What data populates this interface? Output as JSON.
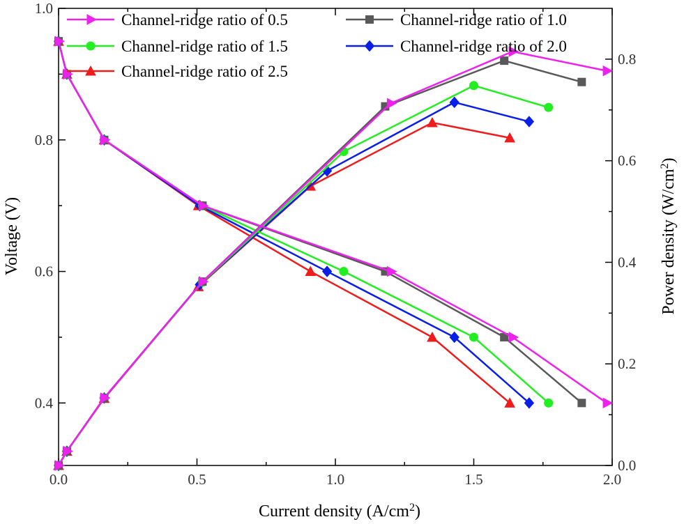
{
  "chart_data": {
    "type": "line",
    "title": "",
    "xlabel": "Current density (A/cm",
    "xlabel_sup": "2",
    "xlabel_end": ")",
    "ylabel_left": "Voltage (V)",
    "ylabel_right": "Power density (W/cm",
    "ylabel_right_sup": "2",
    "ylabel_right_end": ")",
    "xlim": [
      0.0,
      2.0
    ],
    "ylim_left": [
      0.305,
      1.0
    ],
    "ylim_right": [
      0.0,
      0.9
    ],
    "x_ticks": [
      0.0,
      0.5,
      1.0,
      1.5,
      2.0
    ],
    "x_tick_labels": [
      "0.0",
      "0.5",
      "1.0",
      "1.5",
      "2.0"
    ],
    "y_left_ticks": [
      0.4,
      0.6,
      0.8,
      1.0
    ],
    "y_left_tick_labels": [
      "0.4",
      "0.6",
      "0.8",
      "1.0"
    ],
    "y_right_ticks": [
      0.0,
      0.2,
      0.4,
      0.6,
      0.8
    ],
    "y_right_tick_labels": [
      "0.0",
      "0.2",
      "0.4",
      "0.6",
      "0.8"
    ],
    "legend_position": "top",
    "series": [
      {
        "name": "Channel-ridge ratio of 2.5",
        "color": "#ee1c1c",
        "marker": "triangle",
        "polarization": [
          [
            0.0,
            0.95
          ],
          [
            0.03,
            0.9
          ],
          [
            0.165,
            0.8
          ],
          [
            0.505,
            0.7
          ],
          [
            0.91,
            0.6
          ],
          [
            1.35,
            0.5
          ],
          [
            1.63,
            0.4
          ]
        ],
        "power": [
          [
            0.0,
            0.0
          ],
          [
            0.03,
            0.028
          ],
          [
            0.165,
            0.132
          ],
          [
            0.505,
            0.352
          ],
          [
            0.91,
            0.55
          ],
          [
            1.35,
            0.675
          ],
          [
            1.63,
            0.645
          ]
        ]
      },
      {
        "name": "Channel-ridge ratio of 2.0",
        "color": "#0a1fe6",
        "marker": "diamond",
        "polarization": [
          [
            0.0,
            0.95
          ],
          [
            0.03,
            0.9
          ],
          [
            0.165,
            0.8
          ],
          [
            0.51,
            0.7
          ],
          [
            0.97,
            0.6
          ],
          [
            1.43,
            0.5
          ],
          [
            1.7,
            0.4
          ]
        ],
        "power": [
          [
            0.0,
            0.0
          ],
          [
            0.03,
            0.028
          ],
          [
            0.165,
            0.133
          ],
          [
            0.51,
            0.356
          ],
          [
            0.97,
            0.58
          ],
          [
            1.43,
            0.715
          ],
          [
            1.7,
            0.677
          ]
        ]
      },
      {
        "name": "Channel-ridge ratio of 1.5",
        "color": "#22ee22",
        "marker": "circle",
        "polarization": [
          [
            0.0,
            0.95
          ],
          [
            0.03,
            0.9
          ],
          [
            0.165,
            0.8
          ],
          [
            0.52,
            0.7
          ],
          [
            1.03,
            0.6
          ],
          [
            1.5,
            0.5
          ],
          [
            1.77,
            0.4
          ]
        ],
        "power": [
          [
            0.0,
            0.0
          ],
          [
            0.03,
            0.028
          ],
          [
            0.165,
            0.133
          ],
          [
            0.52,
            0.361
          ],
          [
            1.03,
            0.618
          ],
          [
            1.5,
            0.748
          ],
          [
            1.77,
            0.705
          ]
        ]
      },
      {
        "name": "Channel-ridge ratio of 1.0",
        "color": "#595959",
        "marker": "square",
        "polarization": [
          [
            0.0,
            0.95
          ],
          [
            0.03,
            0.9
          ],
          [
            0.165,
            0.8
          ],
          [
            0.52,
            0.7
          ],
          [
            1.18,
            0.6
          ],
          [
            1.61,
            0.5
          ],
          [
            1.89,
            0.4
          ]
        ],
        "power": [
          [
            0.0,
            0.0
          ],
          [
            0.03,
            0.028
          ],
          [
            0.165,
            0.133
          ],
          [
            0.52,
            0.362
          ],
          [
            1.18,
            0.707
          ],
          [
            1.61,
            0.797
          ],
          [
            1.89,
            0.755
          ]
        ]
      },
      {
        "name": "Channel-ridge ratio of 0.5",
        "color": "#ee22ee",
        "marker": "triangle-right",
        "polarization": [
          [
            0.0,
            0.95
          ],
          [
            0.03,
            0.9
          ],
          [
            0.165,
            0.8
          ],
          [
            0.52,
            0.7
          ],
          [
            1.2,
            0.6
          ],
          [
            1.64,
            0.5
          ],
          [
            1.98,
            0.4
          ]
        ],
        "power": [
          [
            0.0,
            0.0
          ],
          [
            0.03,
            0.028
          ],
          [
            0.165,
            0.133
          ],
          [
            0.52,
            0.362
          ],
          [
            1.2,
            0.713
          ],
          [
            1.64,
            0.815
          ],
          [
            1.98,
            0.777
          ]
        ]
      }
    ],
    "legend_order": [
      4,
      3,
      2,
      1,
      0
    ]
  }
}
